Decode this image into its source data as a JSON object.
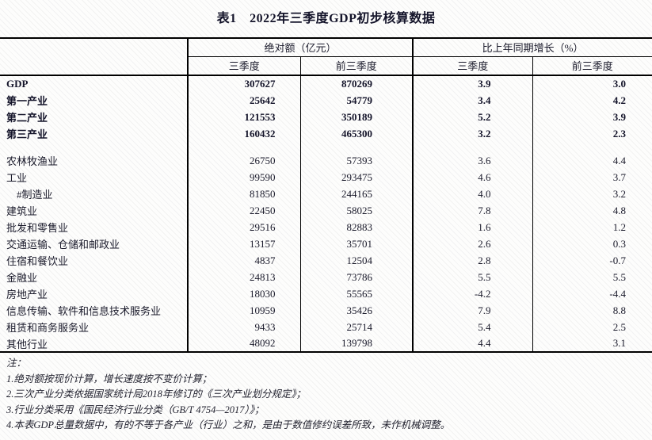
{
  "title": "表1　2022年三季度GDP初步核算数据",
  "table": {
    "header": {
      "group_absolute": "绝对额（亿元）",
      "group_growth": "比上年同期增长（%）",
      "sub": [
        "三季度",
        "前三季度",
        "三季度",
        "前三季度"
      ]
    },
    "rows": [
      {
        "label": "GDP",
        "bold": true,
        "spacer": false,
        "indent": false,
        "values": [
          "307627",
          "870269",
          "3.9",
          "3.0"
        ]
      },
      {
        "label": "第一产业",
        "bold": true,
        "spacer": false,
        "indent": false,
        "values": [
          "25642",
          "54779",
          "3.4",
          "4.2"
        ]
      },
      {
        "label": "第二产业",
        "bold": true,
        "spacer": false,
        "indent": false,
        "values": [
          "121553",
          "350189",
          "5.2",
          "3.9"
        ]
      },
      {
        "label": "第三产业",
        "bold": true,
        "spacer": false,
        "indent": false,
        "values": [
          "160432",
          "465300",
          "3.2",
          "2.3"
        ]
      },
      {
        "label": "",
        "bold": false,
        "spacer": true,
        "indent": false,
        "values": [
          "",
          "",
          "",
          ""
        ]
      },
      {
        "label": "农林牧渔业",
        "bold": false,
        "spacer": false,
        "indent": false,
        "values": [
          "26750",
          "57393",
          "3.6",
          "4.4"
        ]
      },
      {
        "label": "工业",
        "bold": false,
        "spacer": false,
        "indent": false,
        "values": [
          "99590",
          "293475",
          "4.6",
          "3.7"
        ]
      },
      {
        "label": "#制造业",
        "bold": false,
        "spacer": false,
        "indent": true,
        "values": [
          "81850",
          "244165",
          "4.0",
          "3.2"
        ]
      },
      {
        "label": "建筑业",
        "bold": false,
        "spacer": false,
        "indent": false,
        "values": [
          "22450",
          "58025",
          "7.8",
          "4.8"
        ]
      },
      {
        "label": "批发和零售业",
        "bold": false,
        "spacer": false,
        "indent": false,
        "values": [
          "29516",
          "82883",
          "1.6",
          "1.2"
        ]
      },
      {
        "label": "交通运输、仓储和邮政业",
        "bold": false,
        "spacer": false,
        "indent": false,
        "values": [
          "13157",
          "35701",
          "2.6",
          "0.3"
        ]
      },
      {
        "label": "住宿和餐饮业",
        "bold": false,
        "spacer": false,
        "indent": false,
        "values": [
          "4837",
          "12504",
          "2.8",
          "-0.7"
        ]
      },
      {
        "label": "金融业",
        "bold": false,
        "spacer": false,
        "indent": false,
        "values": [
          "24813",
          "73786",
          "5.5",
          "5.5"
        ]
      },
      {
        "label": "房地产业",
        "bold": false,
        "spacer": false,
        "indent": false,
        "values": [
          "18030",
          "55565",
          "-4.2",
          "-4.4"
        ]
      },
      {
        "label": "信息传输、软件和信息技术服务业",
        "bold": false,
        "spacer": false,
        "indent": false,
        "values": [
          "10959",
          "35426",
          "7.9",
          "8.8"
        ]
      },
      {
        "label": "租赁和商务服务业",
        "bold": false,
        "spacer": false,
        "indent": false,
        "values": [
          "9433",
          "25714",
          "5.4",
          "2.5"
        ]
      },
      {
        "label": "其他行业",
        "bold": false,
        "spacer": false,
        "indent": false,
        "values": [
          "48092",
          "139798",
          "4.4",
          "3.1"
        ]
      }
    ]
  },
  "notes": {
    "heading": "注：",
    "items": [
      "1.绝对额按现价计算，增长速度按不变价计算；",
      "2.三次产业分类依据国家统计局2018年修订的《三次产业划分规定》；",
      "3.行业分类采用《国民经济行业分类（GB/T 4754—2017）》；",
      "4.本表GDP总量数据中，有的不等于各产业（行业）之和，是由于数值修约误差所致，未作机械调整。"
    ]
  },
  "colors": {
    "text": "#1a1a2b",
    "rule": "#000000"
  }
}
